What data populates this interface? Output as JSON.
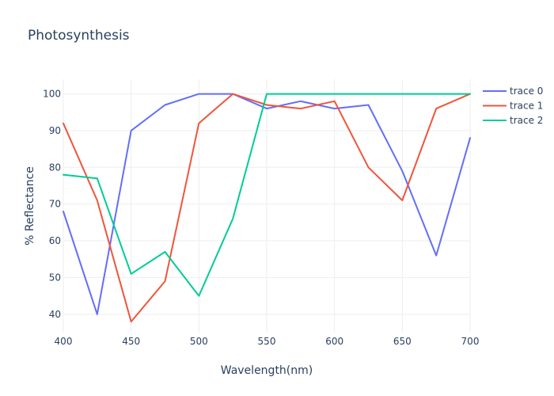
{
  "chart_data": {
    "type": "line",
    "title": "Photosynthesis",
    "xlabel": "Wavelength(nm)",
    "ylabel": "% Reflectance",
    "xlim": [
      400,
      700
    ],
    "ylim": [
      35,
      104
    ],
    "x_ticks": [
      400,
      450,
      500,
      550,
      600,
      650,
      700
    ],
    "y_ticks": [
      40,
      50,
      60,
      70,
      80,
      90,
      100
    ],
    "grid": true,
    "legend": "right",
    "x": [
      400,
      425,
      450,
      475,
      500,
      525,
      550,
      575,
      600,
      625,
      650,
      675,
      700
    ],
    "series": [
      {
        "name": "trace 0",
        "color": "#636efa",
        "values": [
          68,
          40,
          90,
          97,
          100,
          100,
          96,
          98,
          96,
          97,
          79,
          56,
          88
        ]
      },
      {
        "name": "trace 1",
        "color": "#EF553B",
        "values": [
          92,
          71,
          38,
          49,
          92,
          100,
          97,
          96,
          98,
          80,
          71,
          96,
          100
        ]
      },
      {
        "name": "trace 2",
        "color": "#00cc96",
        "values": [
          78,
          77,
          51,
          57,
          45,
          66,
          100,
          100,
          100,
          100,
          100,
          100,
          100
        ]
      }
    ]
  }
}
